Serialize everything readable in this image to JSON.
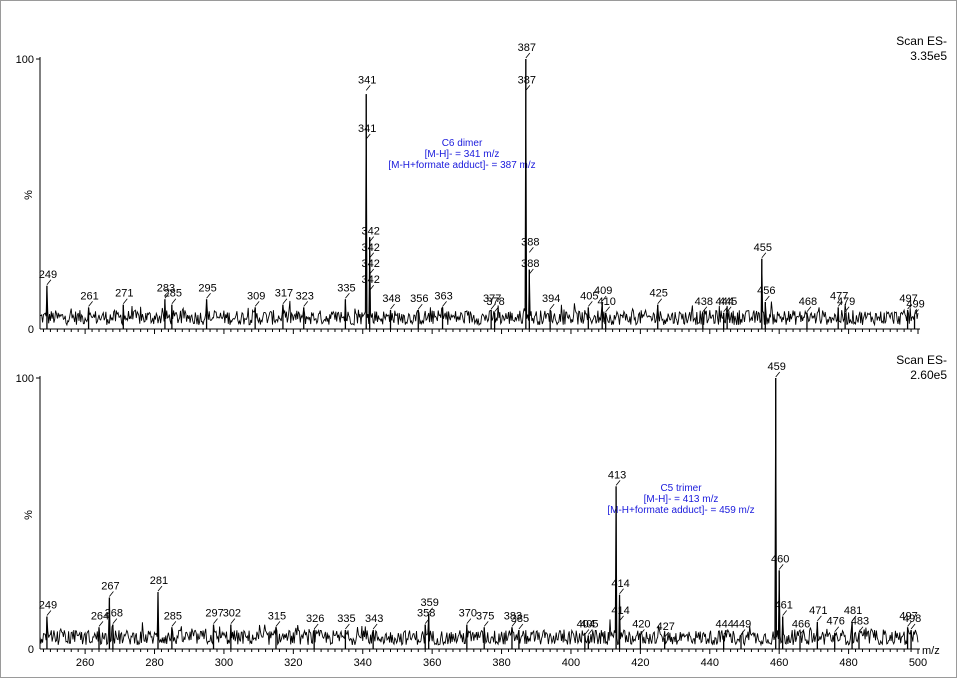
{
  "chart_data": [
    {
      "type": "line",
      "title": "",
      "header": [
        "Scan ES-",
        "3.35e5"
      ],
      "ylabel": "%",
      "xlabel": "",
      "y_ticks": [
        "0",
        "100"
      ],
      "xlim": [
        247,
        500
      ],
      "ylim": [
        0,
        100
      ],
      "annotation": [
        "C6 dimer",
        "[M-H]- = 341 m/z",
        "[M-H+formate adduct]- = 387 m/z"
      ],
      "peaks": [
        {
          "mz": 249,
          "intensity": 16
        },
        {
          "mz": 261,
          "intensity": 8
        },
        {
          "mz": 271,
          "intensity": 9
        },
        {
          "mz": 283,
          "intensity": 11
        },
        {
          "mz": 285,
          "intensity": 9
        },
        {
          "mz": 295,
          "intensity": 11
        },
        {
          "mz": 309,
          "intensity": 8
        },
        {
          "mz": 317,
          "intensity": 9
        },
        {
          "mz": 323,
          "intensity": 8
        },
        {
          "mz": 335,
          "intensity": 11
        },
        {
          "mz": 341,
          "intensity": 87
        },
        {
          "mz": 342,
          "intensity": 34
        },
        {
          "mz": 348,
          "intensity": 7
        },
        {
          "mz": 356,
          "intensity": 7
        },
        {
          "mz": 363,
          "intensity": 8
        },
        {
          "mz": 377,
          "intensity": 7
        },
        {
          "mz": 378,
          "intensity": 6
        },
        {
          "mz": 387,
          "intensity": 100
        },
        {
          "mz": 388,
          "intensity": 22
        },
        {
          "mz": 394,
          "intensity": 7
        },
        {
          "mz": 405,
          "intensity": 8
        },
        {
          "mz": 409,
          "intensity": 10
        },
        {
          "mz": 410,
          "intensity": 6
        },
        {
          "mz": 425,
          "intensity": 9
        },
        {
          "mz": 438,
          "intensity": 6
        },
        {
          "mz": 444,
          "intensity": 6
        },
        {
          "mz": 445,
          "intensity": 6
        },
        {
          "mz": 455,
          "intensity": 26
        },
        {
          "mz": 456,
          "intensity": 10
        },
        {
          "mz": 468,
          "intensity": 6
        },
        {
          "mz": 477,
          "intensity": 8
        },
        {
          "mz": 479,
          "intensity": 6
        },
        {
          "mz": 497,
          "intensity": 7
        },
        {
          "mz": 499,
          "intensity": 5
        }
      ],
      "peak_labels": [
        {
          "text": "249",
          "mz": 249,
          "intensity": 16
        },
        {
          "text": "261",
          "mz": 261,
          "intensity": 8
        },
        {
          "text": "271",
          "mz": 271,
          "intensity": 9
        },
        {
          "text": "283",
          "mz": 283,
          "intensity": 11
        },
        {
          "text": "285",
          "mz": 285,
          "intensity": 9
        },
        {
          "text": "295",
          "mz": 295,
          "intensity": 11
        },
        {
          "text": "309",
          "mz": 309,
          "intensity": 8
        },
        {
          "text": "317",
          "mz": 317,
          "intensity": 9
        },
        {
          "text": "323",
          "mz": 323,
          "intensity": 8
        },
        {
          "text": "335",
          "mz": 335,
          "intensity": 11
        },
        {
          "text": "341",
          "mz": 341,
          "intensity": 88
        },
        {
          "text": "341",
          "mz": 341,
          "intensity": 70
        },
        {
          "text": "342",
          "mz": 342,
          "intensity": 32
        },
        {
          "text": "342",
          "mz": 342,
          "intensity": 26
        },
        {
          "text": "342",
          "mz": 342,
          "intensity": 20
        },
        {
          "text": "342",
          "mz": 342,
          "intensity": 14
        },
        {
          "text": "348",
          "mz": 348,
          "intensity": 7
        },
        {
          "text": "356",
          "mz": 356,
          "intensity": 7
        },
        {
          "text": "363",
          "mz": 363,
          "intensity": 8
        },
        {
          "text": "377",
          "mz": 377,
          "intensity": 7
        },
        {
          "text": "378",
          "mz": 378,
          "intensity": 6
        },
        {
          "text": "387",
          "mz": 387,
          "intensity": 100
        },
        {
          "text": "387",
          "mz": 387,
          "intensity": 88
        },
        {
          "text": "388",
          "mz": 388,
          "intensity": 28
        },
        {
          "text": "388",
          "mz": 388,
          "intensity": 20
        },
        {
          "text": "394",
          "mz": 394,
          "intensity": 7
        },
        {
          "text": "405",
          "mz": 405,
          "intensity": 8
        },
        {
          "text": "409",
          "mz": 409,
          "intensity": 10
        },
        {
          "text": "410",
          "mz": 410,
          "intensity": 6
        },
        {
          "text": "425",
          "mz": 425,
          "intensity": 9
        },
        {
          "text": "438",
          "mz": 438,
          "intensity": 6
        },
        {
          "text": "444",
          "mz": 444,
          "intensity": 6
        },
        {
          "text": "445",
          "mz": 445,
          "intensity": 6
        },
        {
          "text": "455",
          "mz": 455,
          "intensity": 26
        },
        {
          "text": "456",
          "mz": 456,
          "intensity": 10
        },
        {
          "text": "468",
          "mz": 468,
          "intensity": 6
        },
        {
          "text": "477",
          "mz": 477,
          "intensity": 8
        },
        {
          "text": "479",
          "mz": 479,
          "intensity": 6
        },
        {
          "text": "497",
          "mz": 497,
          "intensity": 7
        },
        {
          "text": "499",
          "mz": 499,
          "intensity": 5
        }
      ]
    },
    {
      "type": "line",
      "title": "",
      "header": [
        "Scan ES-",
        "2.60e5"
      ],
      "ylabel": "%",
      "xlabel": "m/z",
      "y_ticks": [
        "0",
        "100"
      ],
      "x_ticks": [
        "260",
        "280",
        "300",
        "320",
        "340",
        "360",
        "380",
        "400",
        "420",
        "440",
        "460",
        "480",
        "500"
      ],
      "xlim": [
        247,
        500
      ],
      "ylim": [
        0,
        100
      ],
      "annotation": [
        "C5 trimer",
        "[M-H]- = 413 m/z",
        "[M-H+formate adduct]- = 459 m/z"
      ],
      "peaks": [
        {
          "mz": 249,
          "intensity": 12
        },
        {
          "mz": 264,
          "intensity": 8
        },
        {
          "mz": 267,
          "intensity": 19
        },
        {
          "mz": 268,
          "intensity": 9
        },
        {
          "mz": 281,
          "intensity": 21
        },
        {
          "mz": 285,
          "intensity": 8
        },
        {
          "mz": 297,
          "intensity": 9
        },
        {
          "mz": 302,
          "intensity": 9
        },
        {
          "mz": 315,
          "intensity": 8
        },
        {
          "mz": 326,
          "intensity": 7
        },
        {
          "mz": 335,
          "intensity": 7
        },
        {
          "mz": 343,
          "intensity": 7
        },
        {
          "mz": 358,
          "intensity": 9
        },
        {
          "mz": 359,
          "intensity": 13
        },
        {
          "mz": 370,
          "intensity": 9
        },
        {
          "mz": 375,
          "intensity": 8
        },
        {
          "mz": 383,
          "intensity": 8
        },
        {
          "mz": 385,
          "intensity": 7
        },
        {
          "mz": 404,
          "intensity": 5
        },
        {
          "mz": 405,
          "intensity": 5
        },
        {
          "mz": 413,
          "intensity": 60
        },
        {
          "mz": 414,
          "intensity": 20
        },
        {
          "mz": 420,
          "intensity": 5
        },
        {
          "mz": 427,
          "intensity": 4
        },
        {
          "mz": 444,
          "intensity": 5
        },
        {
          "mz": 449,
          "intensity": 5
        },
        {
          "mz": 459,
          "intensity": 100
        },
        {
          "mz": 460,
          "intensity": 29
        },
        {
          "mz": 461,
          "intensity": 12
        },
        {
          "mz": 466,
          "intensity": 5
        },
        {
          "mz": 471,
          "intensity": 10
        },
        {
          "mz": 476,
          "intensity": 6
        },
        {
          "mz": 481,
          "intensity": 10
        },
        {
          "mz": 483,
          "intensity": 6
        },
        {
          "mz": 497,
          "intensity": 8
        },
        {
          "mz": 498,
          "intensity": 7
        }
      ],
      "peak_labels": [
        {
          "text": "249",
          "mz": 249,
          "intensity": 12
        },
        {
          "text": "264",
          "mz": 264,
          "intensity": 8
        },
        {
          "text": "267",
          "mz": 267,
          "intensity": 19
        },
        {
          "text": "268",
          "mz": 268,
          "intensity": 9
        },
        {
          "text": "281",
          "mz": 281,
          "intensity": 21
        },
        {
          "text": "285",
          "mz": 285,
          "intensity": 8
        },
        {
          "text": "297",
          "mz": 297,
          "intensity": 9
        },
        {
          "text": "302",
          "mz": 302,
          "intensity": 9
        },
        {
          "text": "315",
          "mz": 315,
          "intensity": 8
        },
        {
          "text": "326",
          "mz": 326,
          "intensity": 7
        },
        {
          "text": "335",
          "mz": 335,
          "intensity": 7
        },
        {
          "text": "343",
          "mz": 343,
          "intensity": 7
        },
        {
          "text": "358",
          "mz": 358,
          "intensity": 9
        },
        {
          "text": "359",
          "mz": 359,
          "intensity": 13
        },
        {
          "text": "370",
          "mz": 370,
          "intensity": 9
        },
        {
          "text": "375",
          "mz": 375,
          "intensity": 8
        },
        {
          "text": "383",
          "mz": 383,
          "intensity": 8
        },
        {
          "text": "385",
          "mz": 385,
          "intensity": 7
        },
        {
          "text": "404",
          "mz": 404,
          "intensity": 5
        },
        {
          "text": "405",
          "mz": 405,
          "intensity": 5
        },
        {
          "text": "413",
          "mz": 413,
          "intensity": 60
        },
        {
          "text": "414",
          "mz": 414,
          "intensity": 20
        },
        {
          "text": "414",
          "mz": 414,
          "intensity": 10
        },
        {
          "text": "420",
          "mz": 420,
          "intensity": 5
        },
        {
          "text": "427",
          "mz": 427,
          "intensity": 4
        },
        {
          "text": "444",
          "mz": 444,
          "intensity": 5
        },
        {
          "text": "449",
          "mz": 449,
          "intensity": 5
        },
        {
          "text": "459",
          "mz": 459,
          "intensity": 100
        },
        {
          "text": "460",
          "mz": 460,
          "intensity": 29
        },
        {
          "text": "461",
          "mz": 461,
          "intensity": 12
        },
        {
          "text": "466",
          "mz": 466,
          "intensity": 5
        },
        {
          "text": "471",
          "mz": 471,
          "intensity": 10
        },
        {
          "text": "476",
          "mz": 476,
          "intensity": 6
        },
        {
          "text": "481",
          "mz": 481,
          "intensity": 10
        },
        {
          "text": "483",
          "mz": 483,
          "intensity": 6
        },
        {
          "text": "497",
          "mz": 497,
          "intensity": 8
        },
        {
          "text": "498",
          "mz": 498,
          "intensity": 7
        }
      ]
    }
  ]
}
